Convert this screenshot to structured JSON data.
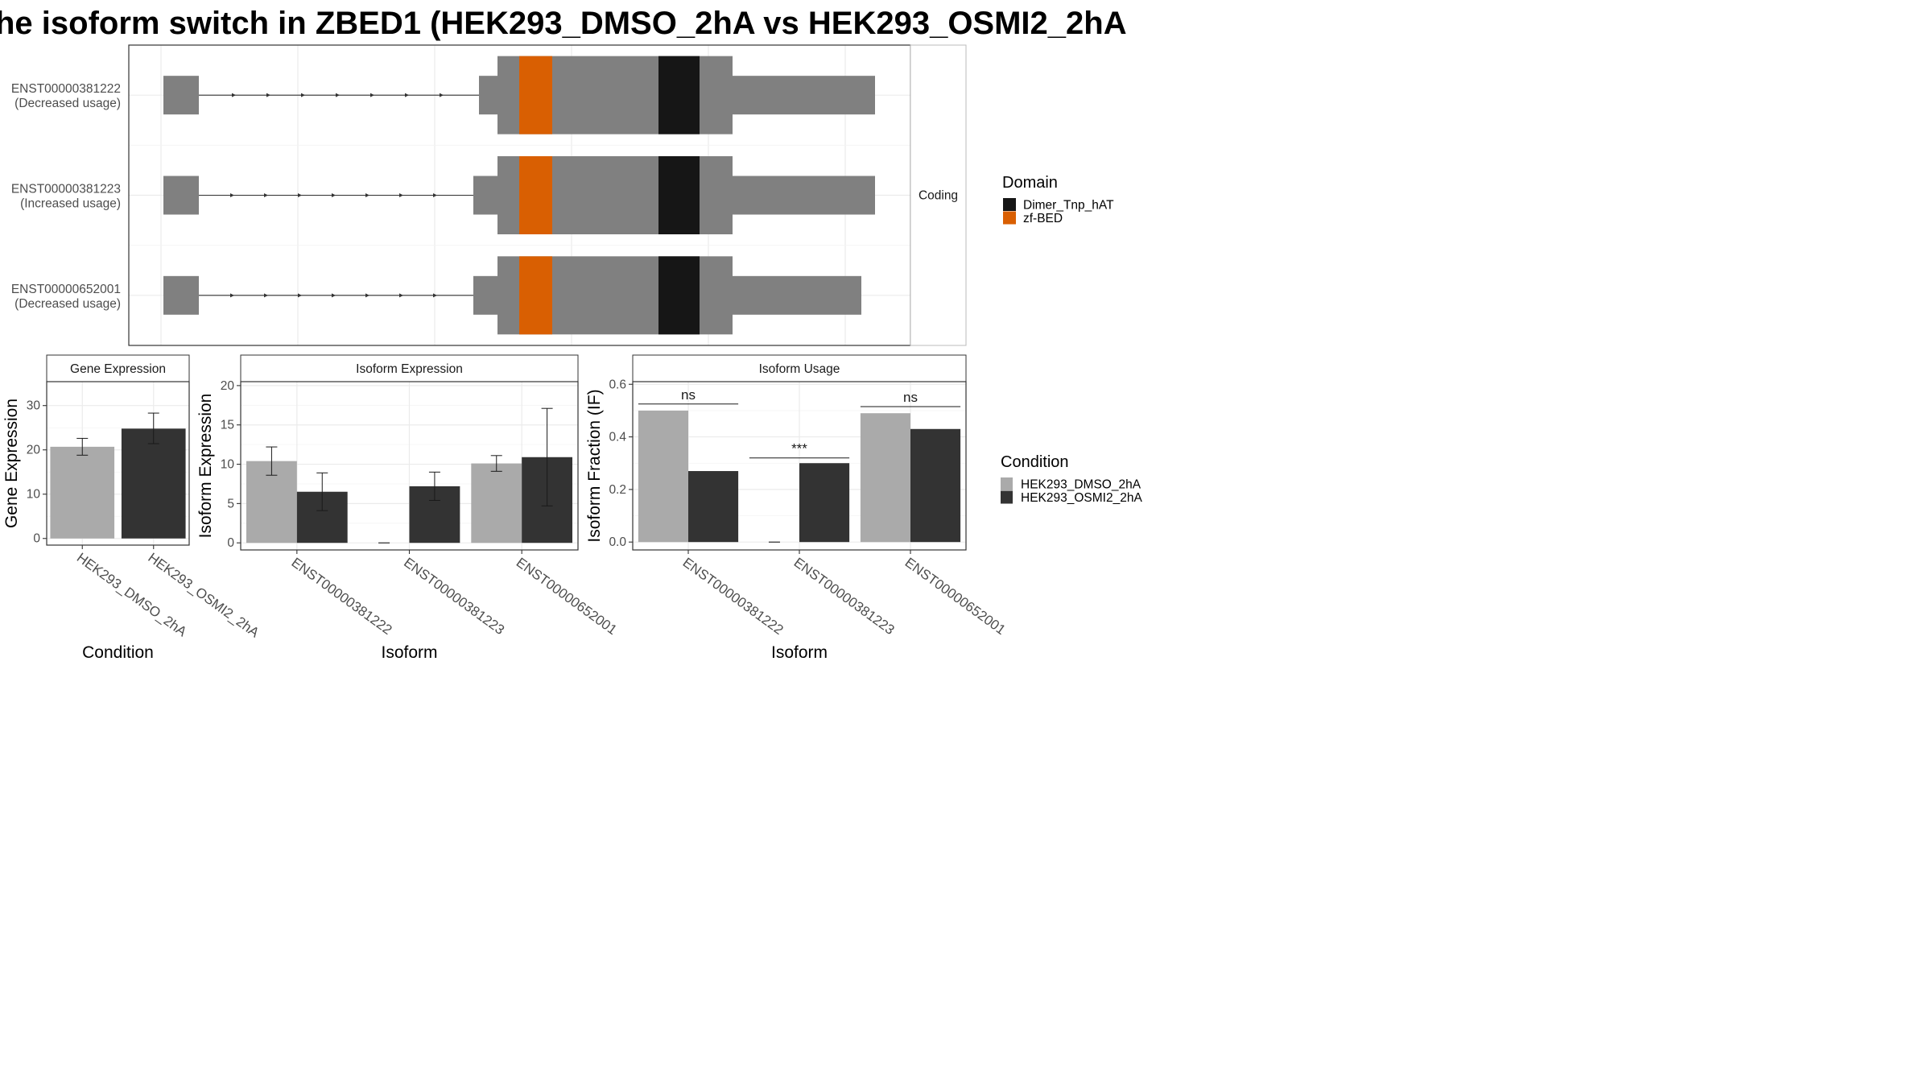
{
  "title": "he isoform switch in ZBED1 (HEK293_DMSO_2hA vs HEK293_OSMI2_2hA",
  "colors": {
    "exon": "#808080",
    "zf_bed": "#D95F02",
    "dimer": "#161616",
    "dmso": "#AAAAAA",
    "osmi": "#333333",
    "grid": "#EBEBEB",
    "panel_border": "#333333",
    "strip_bg": "#FFFFFF"
  },
  "transcripts": {
    "strip_label": "Coding",
    "items": [
      {
        "id": "ENST00000381222",
        "usage": "(Decreased usage)",
        "first_exon": [
          203,
          247
        ],
        "intron_end": 595,
        "body_start": 618,
        "body_end": 910,
        "utr_start": 595,
        "utr_end": 1087,
        "arrows": [
          292,
          335,
          378,
          421,
          464,
          507,
          550
        ]
      },
      {
        "id": "ENST00000381223",
        "usage": "(Increased usage)",
        "first_exon": [
          203,
          247
        ],
        "intron_end": 588,
        "body_start": 618,
        "body_end": 910,
        "utr_start": 588,
        "utr_end": 1087,
        "arrows": [
          290,
          332,
          374,
          416,
          458,
          500,
          542
        ]
      },
      {
        "id": "ENST00000652001",
        "usage": "(Decreased usage)",
        "first_exon": [
          203,
          247
        ],
        "intron_end": 588,
        "body_start": 618,
        "body_end": 910,
        "utr_start": 588,
        "utr_end": 1070,
        "arrows": [
          290,
          332,
          374,
          416,
          458,
          500,
          542
        ]
      }
    ],
    "domains": [
      {
        "name": "zf-BED",
        "start": 645,
        "end": 686
      },
      {
        "name": "Dimer_Tnp_hAT",
        "start": 818,
        "end": 869
      }
    ],
    "coord_range": [
      160,
      1131
    ],
    "grid_x": [
      200,
      370,
      540,
      710,
      880,
      1050
    ]
  },
  "domain_legend": {
    "title": "Domain",
    "entries": [
      "Dimer_Tnp_hAT",
      "zf-BED"
    ]
  },
  "condition_legend": {
    "title": "Condition",
    "entries": [
      "HEK293_DMSO_2hA",
      "HEK293_OSMI2_2hA"
    ]
  },
  "chart_data": [
    {
      "type": "bar",
      "title": "Gene Expression",
      "xlabel": "Condition",
      "ylabel": "Gene Expression",
      "categories": [
        "HEK293_DMSO_2hA",
        "HEK293_OSMI2_2hA"
      ],
      "values": [
        20.7,
        24.8
      ],
      "err_low": [
        18.8,
        21.4
      ],
      "err_high": [
        22.6,
        28.3
      ],
      "ylim": [
        -1.5,
        35.4
      ],
      "yticks": [
        0,
        10,
        20,
        30
      ]
    },
    {
      "type": "bar",
      "title": "Isoform Expression",
      "xlabel": "Isoform",
      "ylabel": "Isoform Expression",
      "categories": [
        "ENST00000381222",
        "ENST00000381223",
        "ENST00000652001"
      ],
      "series": [
        {
          "name": "HEK293_DMSO_2hA",
          "values": [
            10.4,
            0.0,
            10.1
          ],
          "err_low": [
            8.6,
            0.0,
            9.1
          ],
          "err_high": [
            12.2,
            0.0,
            11.1
          ]
        },
        {
          "name": "HEK293_OSMI2_2hA",
          "values": [
            6.5,
            7.2,
            10.9
          ],
          "err_low": [
            4.1,
            5.4,
            4.7
          ],
          "err_high": [
            8.9,
            9.0,
            17.1
          ]
        }
      ],
      "ylim": [
        -0.9,
        20.5
      ],
      "yticks": [
        0,
        5,
        10,
        15,
        20
      ]
    },
    {
      "type": "bar",
      "title": "Isoform Usage",
      "xlabel": "Isoform",
      "ylabel": "Isoform Fraction (IF)",
      "categories": [
        "ENST00000381222",
        "ENST00000381223",
        "ENST00000652001"
      ],
      "series": [
        {
          "name": "HEK293_DMSO_2hA",
          "values": [
            0.5,
            0.0,
            0.49
          ]
        },
        {
          "name": "HEK293_OSMI2_2hA",
          "values": [
            0.27,
            0.3,
            0.43
          ]
        }
      ],
      "significance": [
        {
          "category": 0,
          "label": "ns",
          "y": 0.525
        },
        {
          "category": 1,
          "label": "***",
          "y": 0.32
        },
        {
          "category": 2,
          "label": "ns",
          "y": 0.515
        }
      ],
      "ylim": [
        -0.03,
        0.61
      ],
      "yticks": [
        0.0,
        0.2,
        0.4,
        0.6
      ],
      "ytick_labels": [
        "0.0",
        "0.2",
        "0.4",
        "0.6"
      ]
    }
  ]
}
